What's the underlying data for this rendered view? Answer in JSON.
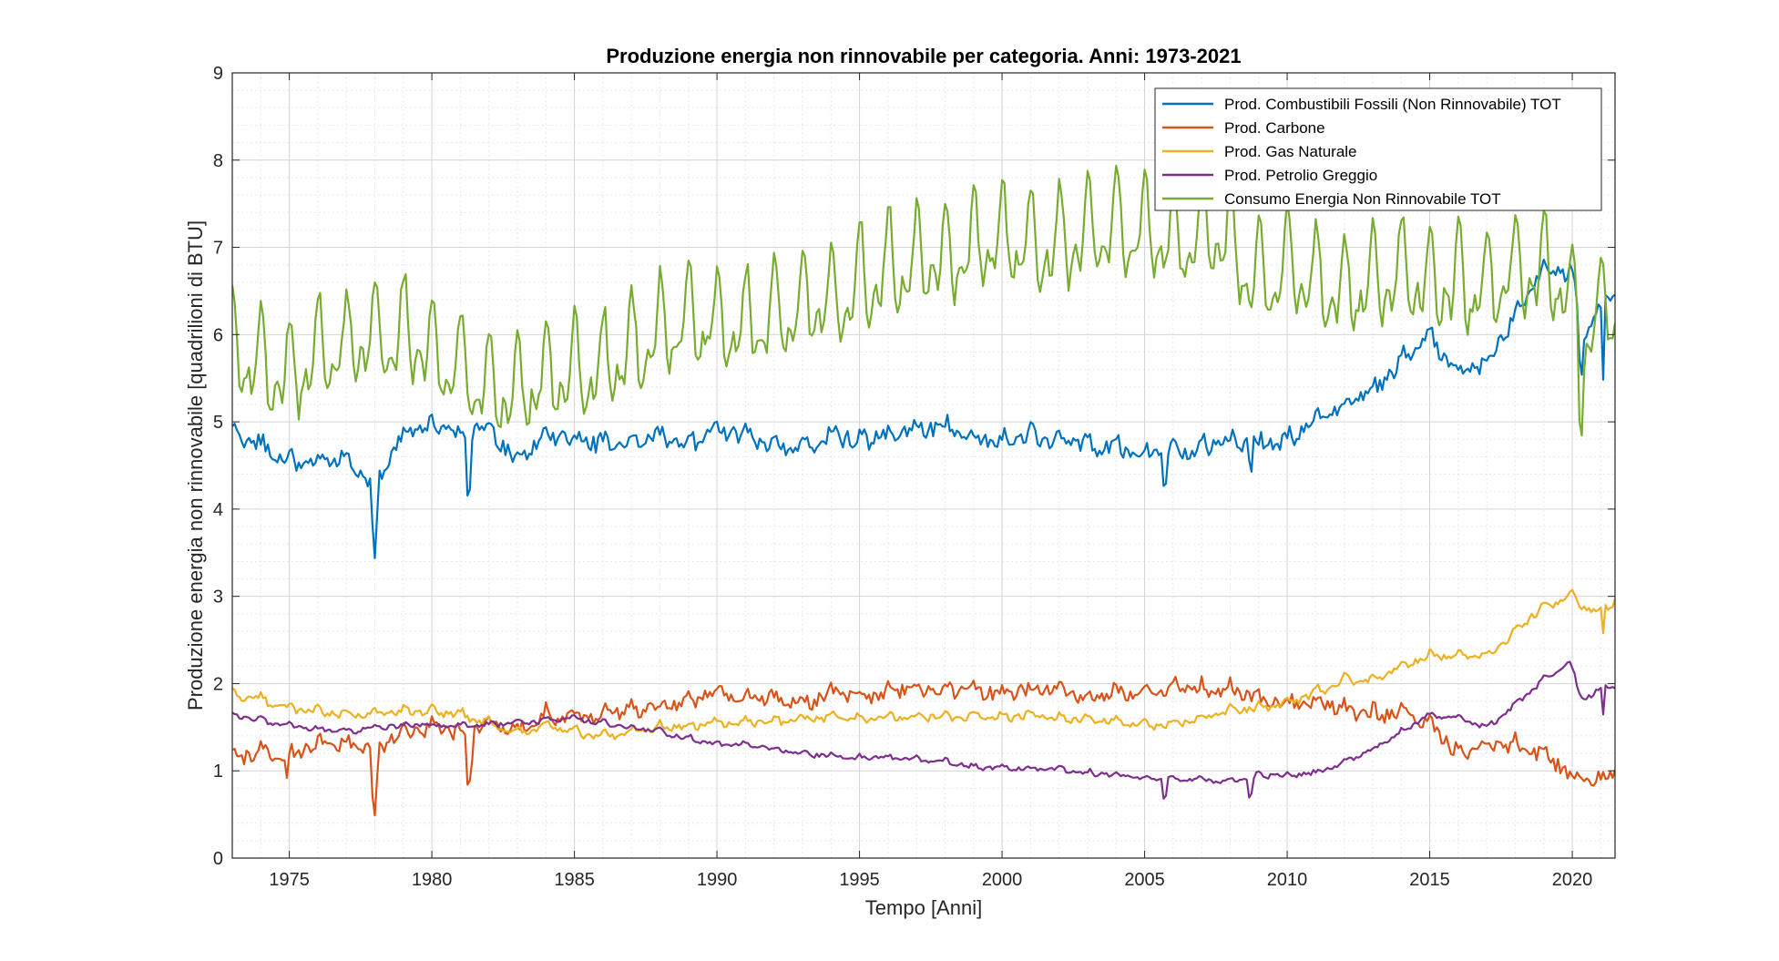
{
  "chart_data": {
    "type": "line",
    "title": "Produzione energia non rinnovabile per categoria. Anni: 1973-2021",
    "xlabel": "Tempo [Anni]",
    "ylabel": "Produzione energia non rinnovabile [quadrilioni di BTU]",
    "xlim": [
      1973.0,
      2021.5
    ],
    "ylim": [
      0,
      9
    ],
    "x_ticks": [
      1975,
      1980,
      1985,
      1990,
      1995,
      2000,
      2005,
      2010,
      2015,
      2020
    ],
    "x_tick_labels": [
      "1975",
      "1980",
      "1985",
      "1990",
      "1995",
      "2000",
      "2005",
      "2010",
      "2015",
      "2020"
    ],
    "y_ticks": [
      0,
      1,
      2,
      3,
      4,
      5,
      6,
      7,
      8,
      9
    ],
    "y_tick_labels": [
      "0",
      "1",
      "2",
      "3",
      "4",
      "5",
      "6",
      "7",
      "8",
      "9"
    ],
    "grid": true,
    "minor_grid": true,
    "legend_position": "top-right",
    "series": [
      {
        "name": "Prod. Combustibili Fossili (Non Rinnovabile) TOT",
        "color": "#0072BD",
        "sampling": "monthly, Jan 1973 - Jun 2021",
        "anchors": [
          [
            1973.0,
            4.85
          ],
          [
            1974.0,
            4.75
          ],
          [
            1975.0,
            4.55
          ],
          [
            1976.0,
            4.55
          ],
          [
            1977.0,
            4.6
          ],
          [
            1978.0,
            4.3
          ],
          [
            1978.3,
            4.45
          ],
          [
            1979.0,
            4.85
          ],
          [
            1980.0,
            4.95
          ],
          [
            1981.0,
            4.85
          ],
          [
            1982.0,
            4.95
          ],
          [
            1983.0,
            4.55
          ],
          [
            1984.0,
            4.85
          ],
          [
            1985.0,
            4.8
          ],
          [
            1986.0,
            4.75
          ],
          [
            1987.0,
            4.75
          ],
          [
            1988.0,
            4.85
          ],
          [
            1989.0,
            4.75
          ],
          [
            1990.0,
            4.9
          ],
          [
            1991.0,
            4.85
          ],
          [
            1992.0,
            4.75
          ],
          [
            1993.0,
            4.7
          ],
          [
            1994.0,
            4.85
          ],
          [
            1995.0,
            4.8
          ],
          [
            1996.0,
            4.85
          ],
          [
            1997.0,
            4.9
          ],
          [
            1998.0,
            4.95
          ],
          [
            1999.0,
            4.8
          ],
          [
            2000.0,
            4.8
          ],
          [
            2001.0,
            4.85
          ],
          [
            2002.0,
            4.75
          ],
          [
            2003.0,
            4.75
          ],
          [
            2004.0,
            4.7
          ],
          [
            2005.0,
            4.65
          ],
          [
            2006.0,
            4.65
          ],
          [
            2007.0,
            4.7
          ],
          [
            2008.0,
            4.8
          ],
          [
            2009.0,
            4.75
          ],
          [
            2010.0,
            4.8
          ],
          [
            2011.0,
            5.0
          ],
          [
            2012.0,
            5.2
          ],
          [
            2013.0,
            5.35
          ],
          [
            2014.0,
            5.7
          ],
          [
            2015.0,
            6.0
          ],
          [
            2016.0,
            5.55
          ],
          [
            2017.0,
            5.7
          ],
          [
            2018.0,
            6.2
          ],
          [
            2019.0,
            6.75
          ],
          [
            2020.0,
            6.7
          ],
          [
            2020.4,
            5.95
          ],
          [
            2021.0,
            6.3
          ],
          [
            2021.5,
            6.45
          ]
        ],
        "seasonal_amplitude": 0.06,
        "noise": 0.09,
        "events": [
          [
            1977.9,
            -0.6
          ],
          [
            1978.0,
            -0.9
          ],
          [
            1978.1,
            -0.5
          ],
          [
            1981.3,
            -0.6
          ],
          [
            2005.7,
            -0.3
          ],
          [
            2008.7,
            -0.25
          ],
          [
            2020.3,
            -0.5
          ],
          [
            2021.1,
            -0.9
          ]
        ]
      },
      {
        "name": "Prod. Carbone",
        "color": "#D95319",
        "sampling": "monthly, Jan 1973 - Jun 2021",
        "anchors": [
          [
            1973.0,
            1.15
          ],
          [
            1974.0,
            1.2
          ],
          [
            1975.0,
            1.2
          ],
          [
            1976.0,
            1.3
          ],
          [
            1977.0,
            1.3
          ],
          [
            1978.0,
            1.25
          ],
          [
            1979.0,
            1.45
          ],
          [
            1980.0,
            1.5
          ],
          [
            1981.0,
            1.45
          ],
          [
            1982.0,
            1.55
          ],
          [
            1983.0,
            1.45
          ],
          [
            1984.0,
            1.65
          ],
          [
            1985.0,
            1.6
          ],
          [
            1986.0,
            1.65
          ],
          [
            1987.0,
            1.7
          ],
          [
            1988.0,
            1.75
          ],
          [
            1989.0,
            1.8
          ],
          [
            1990.0,
            1.9
          ],
          [
            1991.0,
            1.85
          ],
          [
            1992.0,
            1.85
          ],
          [
            1993.0,
            1.75
          ],
          [
            1994.0,
            1.9
          ],
          [
            1995.0,
            1.85
          ],
          [
            1996.0,
            1.9
          ],
          [
            1997.0,
            1.95
          ],
          [
            1998.0,
            1.95
          ],
          [
            1999.0,
            1.9
          ],
          [
            2000.0,
            1.9
          ],
          [
            2001.0,
            1.95
          ],
          [
            2002.0,
            1.9
          ],
          [
            2003.0,
            1.85
          ],
          [
            2004.0,
            1.9
          ],
          [
            2005.0,
            1.9
          ],
          [
            2006.0,
            1.95
          ],
          [
            2007.0,
            1.95
          ],
          [
            2008.0,
            1.95
          ],
          [
            2009.0,
            1.8
          ],
          [
            2010.0,
            1.8
          ],
          [
            2011.0,
            1.8
          ],
          [
            2012.0,
            1.7
          ],
          [
            2013.0,
            1.65
          ],
          [
            2014.0,
            1.65
          ],
          [
            2015.0,
            1.55
          ],
          [
            2016.0,
            1.2
          ],
          [
            2017.0,
            1.3
          ],
          [
            2018.0,
            1.3
          ],
          [
            2019.0,
            1.2
          ],
          [
            2020.0,
            0.95
          ],
          [
            2020.5,
            0.85
          ],
          [
            2021.0,
            0.9
          ],
          [
            2021.5,
            0.98
          ]
        ],
        "seasonal_amplitude": 0.05,
        "noise": 0.08,
        "events": [
          [
            1974.9,
            -0.35
          ],
          [
            1977.9,
            -0.55
          ],
          [
            1978.0,
            -0.75
          ],
          [
            1978.1,
            -0.45
          ],
          [
            1981.3,
            -0.6
          ],
          [
            1981.4,
            -0.4
          ]
        ]
      },
      {
        "name": "Prod. Gas Naturale",
        "color": "#EDB120",
        "sampling": "monthly, Jan 1973 - Jun 2021",
        "anchors": [
          [
            1973.0,
            1.88
          ],
          [
            1974.0,
            1.82
          ],
          [
            1975.0,
            1.72
          ],
          [
            1976.0,
            1.68
          ],
          [
            1977.0,
            1.65
          ],
          [
            1978.0,
            1.65
          ],
          [
            1979.0,
            1.68
          ],
          [
            1980.0,
            1.68
          ],
          [
            1981.0,
            1.65
          ],
          [
            1982.0,
            1.55
          ],
          [
            1983.0,
            1.42
          ],
          [
            1984.0,
            1.52
          ],
          [
            1985.0,
            1.45
          ],
          [
            1986.0,
            1.4
          ],
          [
            1987.0,
            1.45
          ],
          [
            1988.0,
            1.5
          ],
          [
            1989.0,
            1.52
          ],
          [
            1990.0,
            1.55
          ],
          [
            1991.0,
            1.55
          ],
          [
            1992.0,
            1.57
          ],
          [
            1993.0,
            1.58
          ],
          [
            1994.0,
            1.62
          ],
          [
            1995.0,
            1.6
          ],
          [
            1996.0,
            1.62
          ],
          [
            1997.0,
            1.62
          ],
          [
            1998.0,
            1.62
          ],
          [
            1999.0,
            1.62
          ],
          [
            2000.0,
            1.62
          ],
          [
            2001.0,
            1.65
          ],
          [
            2002.0,
            1.6
          ],
          [
            2003.0,
            1.6
          ],
          [
            2004.0,
            1.57
          ],
          [
            2005.0,
            1.52
          ],
          [
            2006.0,
            1.55
          ],
          [
            2007.0,
            1.6
          ],
          [
            2008.0,
            1.7
          ],
          [
            2009.0,
            1.72
          ],
          [
            2010.0,
            1.78
          ],
          [
            2011.0,
            1.9
          ],
          [
            2012.0,
            2.05
          ],
          [
            2013.0,
            2.05
          ],
          [
            2014.0,
            2.2
          ],
          [
            2015.0,
            2.32
          ],
          [
            2016.0,
            2.32
          ],
          [
            2017.0,
            2.32
          ],
          [
            2018.0,
            2.6
          ],
          [
            2019.0,
            2.9
          ],
          [
            2020.0,
            3.0
          ],
          [
            2020.5,
            2.85
          ],
          [
            2021.0,
            2.85
          ],
          [
            2021.5,
            2.95
          ]
        ],
        "seasonal_amplitude": 0.04,
        "noise": 0.035,
        "events": [
          [
            2021.1,
            -0.35
          ]
        ]
      },
      {
        "name": "Prod. Petrolio Greggio",
        "color": "#7E2F8E",
        "sampling": "monthly, Jan 1973 - Jun 2021",
        "anchors": [
          [
            1973.0,
            1.63
          ],
          [
            1974.0,
            1.58
          ],
          [
            1975.0,
            1.52
          ],
          [
            1976.0,
            1.48
          ],
          [
            1977.0,
            1.45
          ],
          [
            1978.0,
            1.5
          ],
          [
            1979.0,
            1.52
          ],
          [
            1980.0,
            1.53
          ],
          [
            1981.0,
            1.52
          ],
          [
            1982.0,
            1.53
          ],
          [
            1983.0,
            1.55
          ],
          [
            1984.0,
            1.57
          ],
          [
            1985.0,
            1.6
          ],
          [
            1986.0,
            1.55
          ],
          [
            1987.0,
            1.5
          ],
          [
            1988.0,
            1.45
          ],
          [
            1989.0,
            1.38
          ],
          [
            1990.0,
            1.3
          ],
          [
            1991.0,
            1.3
          ],
          [
            1992.0,
            1.25
          ],
          [
            1993.0,
            1.2
          ],
          [
            1994.0,
            1.17
          ],
          [
            1995.0,
            1.15
          ],
          [
            1996.0,
            1.15
          ],
          [
            1997.0,
            1.13
          ],
          [
            1998.0,
            1.1
          ],
          [
            1999.0,
            1.05
          ],
          [
            2000.0,
            1.03
          ],
          [
            2001.0,
            1.02
          ],
          [
            2002.0,
            1.02
          ],
          [
            2003.0,
            0.98
          ],
          [
            2004.0,
            0.95
          ],
          [
            2005.0,
            0.92
          ],
          [
            2006.0,
            0.9
          ],
          [
            2007.0,
            0.9
          ],
          [
            2008.0,
            0.88
          ],
          [
            2009.0,
            0.95
          ],
          [
            2010.0,
            0.95
          ],
          [
            2011.0,
            0.98
          ],
          [
            2012.0,
            1.1
          ],
          [
            2013.0,
            1.25
          ],
          [
            2014.0,
            1.45
          ],
          [
            2015.0,
            1.65
          ],
          [
            2016.0,
            1.6
          ],
          [
            2017.0,
            1.5
          ],
          [
            2018.0,
            1.75
          ],
          [
            2019.0,
            2.05
          ],
          [
            2019.9,
            2.25
          ],
          [
            2020.3,
            1.85
          ],
          [
            2020.6,
            1.85
          ],
          [
            2021.0,
            1.95
          ],
          [
            2021.5,
            1.97
          ]
        ],
        "seasonal_amplitude": 0.02,
        "noise": 0.025,
        "events": [
          [
            2005.7,
            -0.2
          ],
          [
            2008.7,
            -0.2
          ],
          [
            2021.1,
            -0.35
          ]
        ]
      },
      {
        "name": "Consumo Energia Non Rinnovabile TOT",
        "color": "#77AC30",
        "sampling": "monthly, Jan 1973 - Jun 2021",
        "anchors": [
          [
            1973.0,
            5.8
          ],
          [
            1974.0,
            5.6
          ],
          [
            1975.0,
            5.5
          ],
          [
            1976.0,
            5.75
          ],
          [
            1977.0,
            5.85
          ],
          [
            1978.0,
            5.95
          ],
          [
            1979.0,
            6.0
          ],
          [
            1980.0,
            5.8
          ],
          [
            1981.0,
            5.6
          ],
          [
            1982.0,
            5.35
          ],
          [
            1983.0,
            5.3
          ],
          [
            1984.0,
            5.55
          ],
          [
            1985.0,
            5.55
          ],
          [
            1986.0,
            5.6
          ],
          [
            1987.0,
            5.8
          ],
          [
            1988.0,
            6.0
          ],
          [
            1989.0,
            6.15
          ],
          [
            1990.0,
            6.1
          ],
          [
            1991.0,
            6.1
          ],
          [
            1992.0,
            6.2
          ],
          [
            1993.0,
            6.3
          ],
          [
            1994.0,
            6.4
          ],
          [
            1995.0,
            6.55
          ],
          [
            1996.0,
            6.75
          ],
          [
            1997.0,
            6.8
          ],
          [
            1998.0,
            6.85
          ],
          [
            1999.0,
            6.95
          ],
          [
            2000.0,
            7.1
          ],
          [
            2001.0,
            7.0
          ],
          [
            2002.0,
            7.05
          ],
          [
            2003.0,
            7.1
          ],
          [
            2004.0,
            7.2
          ],
          [
            2005.0,
            7.2
          ],
          [
            2006.0,
            7.05
          ],
          [
            2007.0,
            7.15
          ],
          [
            2008.0,
            7.0
          ],
          [
            2009.0,
            6.6
          ],
          [
            2010.0,
            6.75
          ],
          [
            2011.0,
            6.65
          ],
          [
            2012.0,
            6.45
          ],
          [
            2013.0,
            6.6
          ],
          [
            2014.0,
            6.65
          ],
          [
            2015.0,
            6.6
          ],
          [
            2016.0,
            6.55
          ],
          [
            2017.0,
            6.5
          ],
          [
            2018.0,
            6.75
          ],
          [
            2019.0,
            6.7
          ],
          [
            2019.9,
            6.55
          ],
          [
            2020.3,
            5.85
          ],
          [
            2020.7,
            6.2
          ],
          [
            2021.0,
            6.3
          ],
          [
            2021.5,
            6.35
          ]
        ],
        "seasonal_amplitude": 0.55,
        "noise": 0.12,
        "events": [
          [
            2020.3,
            -0.7
          ]
        ]
      }
    ]
  }
}
